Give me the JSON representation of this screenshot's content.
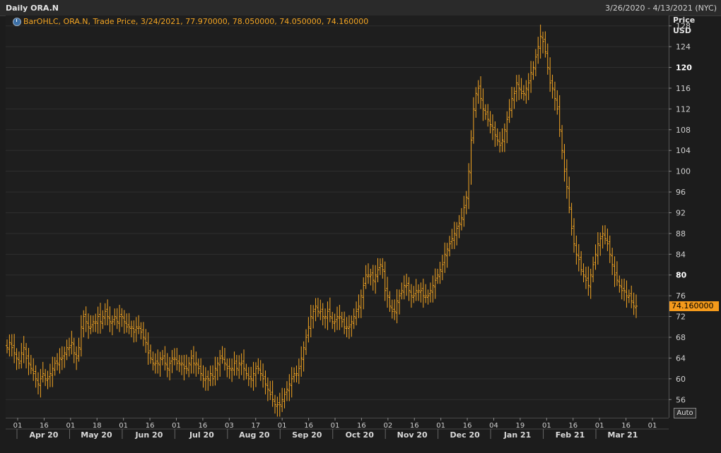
{
  "header": {
    "title": "Daily ORA.N",
    "range": "3/26/2020 - 4/13/2021 (NYC)"
  },
  "legend": {
    "text": "BarOHLC, ORA.N, Trade Price, 3/24/2021, 77.970000, 78.050000, 74.050000, 74.160000"
  },
  "axis_head": {
    "line1": "Price",
    "line2": "USD"
  },
  "last_price": "74.160000",
  "auto_label": "Auto",
  "colors": {
    "bars": "#f5a623",
    "grid": "#2e2e2e",
    "background": "#1e1e1e"
  },
  "chart_data": {
    "type": "ohlc",
    "ylim": [
      52.5,
      130
    ],
    "yticks": [
      56,
      60,
      64,
      68,
      72,
      76,
      80,
      84,
      88,
      92,
      96,
      100,
      104,
      108,
      112,
      116,
      120,
      124,
      128
    ],
    "ytick_bold": [
      80,
      120
    ],
    "x_day_labels": [
      "01",
      "16",
      "01",
      "18",
      "01",
      "16",
      "01",
      "16",
      "03",
      "17",
      "01",
      "16",
      "01",
      "16",
      "02",
      "16",
      "01",
      "16",
      "04",
      "19",
      "01",
      "16",
      "01",
      "16",
      "01"
    ],
    "x_month_labels": [
      "Apr 20",
      "May 20",
      "Jun 20",
      "Jul 20",
      "Aug 20",
      "Sep 20",
      "Oct 20",
      "Nov 20",
      "Dec 20",
      "Jan 21",
      "Feb 21",
      "Mar 21"
    ],
    "close_series": [
      66,
      67,
      66,
      65,
      64,
      63,
      65,
      66,
      64,
      63,
      62,
      61,
      60,
      59,
      60,
      61,
      60,
      60,
      61,
      62,
      63,
      63,
      64,
      64,
      65,
      66,
      66,
      67,
      65,
      64,
      66,
      70,
      72,
      71,
      70,
      70,
      71,
      71,
      72,
      71,
      72,
      73,
      72,
      71,
      71,
      72,
      71,
      72,
      72,
      71,
      70,
      70,
      70,
      69,
      70,
      70,
      69,
      68,
      67,
      65,
      64,
      63,
      63,
      63,
      64,
      64,
      63,
      62,
      63,
      64,
      64,
      63,
      63,
      63,
      62,
      62,
      63,
      64,
      63,
      63,
      62,
      61,
      60,
      60,
      60,
      61,
      60,
      62,
      63,
      64,
      64,
      63,
      62,
      62,
      62,
      63,
      62,
      63,
      63,
      62,
      61,
      60,
      60,
      61,
      62,
      62,
      61,
      60,
      59,
      58,
      57,
      56,
      55,
      55,
      55,
      56,
      57,
      58,
      59,
      60,
      61,
      61,
      62,
      64,
      66,
      68,
      70,
      72,
      73,
      74,
      73,
      73,
      72,
      72,
      73,
      72,
      71,
      71,
      72,
      72,
      71,
      70,
      70,
      70,
      71,
      72,
      73,
      74,
      76,
      78,
      80,
      80,
      80,
      79,
      80,
      81,
      82,
      81,
      77,
      76,
      74,
      73,
      73,
      75,
      76,
      77,
      78,
      78,
      77,
      76,
      76,
      77,
      77,
      77,
      76,
      76,
      76,
      77,
      78,
      79,
      80,
      81,
      82,
      84,
      85,
      86,
      87,
      88,
      89,
      90,
      91,
      93,
      95,
      100,
      106,
      112,
      115,
      116,
      114,
      112,
      111,
      110,
      109,
      108,
      107,
      106,
      105,
      106,
      108,
      110,
      112,
      114,
      115,
      117,
      116,
      115,
      115,
      116,
      117,
      119,
      120,
      122,
      124,
      126,
      125,
      123,
      120,
      117,
      116,
      114,
      112,
      108,
      104,
      100,
      97,
      93,
      89,
      86,
      84,
      83,
      81,
      80,
      79,
      78,
      80,
      82,
      84,
      86,
      87,
      88,
      87,
      86,
      84,
      82,
      80,
      79,
      78,
      77,
      77,
      76,
      76,
      75,
      74,
      74
    ]
  }
}
